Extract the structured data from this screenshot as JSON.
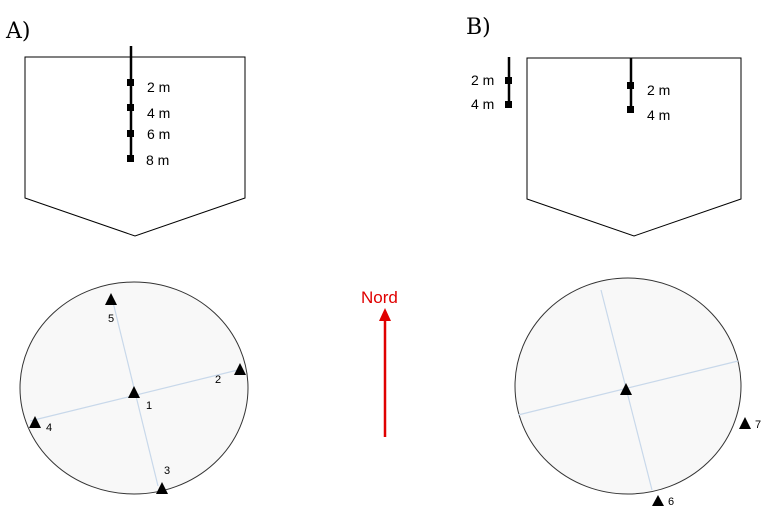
{
  "panels": {
    "a": {
      "label": "A)",
      "depths": [
        "2 m",
        "4 m",
        "6 m",
        "8 m"
      ],
      "sites": [
        "1",
        "2",
        "3",
        "4",
        "5"
      ]
    },
    "b": {
      "label": "B)",
      "outside_depths": [
        "2 m",
        "4 m"
      ],
      "inside_depths": [
        "2 m",
        "4 m"
      ],
      "sites": [
        "6",
        "7"
      ]
    }
  },
  "north": {
    "label": "Nord",
    "color": "#e00000"
  },
  "colors": {
    "transect": "#c8d8ea",
    "circle_fill": "#f8f8f8",
    "outline": "#333333"
  }
}
